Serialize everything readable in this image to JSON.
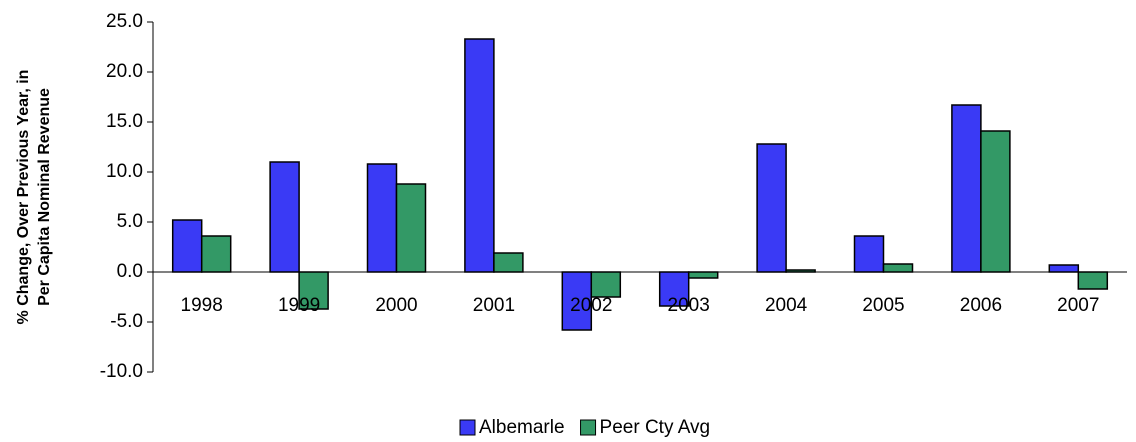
{
  "chart_data": {
    "type": "bar",
    "ylabel": [
      "% Change, Over Previous Year, in",
      "Per Capita Nominal Revenue"
    ],
    "categories": [
      "1998",
      "1999",
      "2000",
      "2001",
      "2002",
      "2003",
      "2004",
      "2005",
      "2006",
      "2007"
    ],
    "series": [
      {
        "name": "Albemarle",
        "color": "#3a3af5",
        "values": [
          5.2,
          11.0,
          10.8,
          23.3,
          -5.8,
          -3.4,
          12.8,
          3.6,
          16.7,
          0.7
        ]
      },
      {
        "name": "Peer Cty Avg",
        "color": "#339966",
        "values": [
          3.6,
          -3.7,
          8.8,
          1.9,
          -2.5,
          -0.6,
          0.2,
          0.8,
          14.1,
          -1.7
        ]
      }
    ],
    "ylim": [
      -10,
      25
    ],
    "yticks": [
      {
        "value": -10,
        "label": "-10.0"
      },
      {
        "value": -5,
        "label": "-5.0"
      },
      {
        "value": 0,
        "label": "0.0"
      },
      {
        "value": 5,
        "label": "5.0"
      },
      {
        "value": 10,
        "label": "10.0"
      },
      {
        "value": 15,
        "label": "15.0"
      },
      {
        "value": 20,
        "label": "20.0"
      },
      {
        "value": 25,
        "label": "25.0"
      }
    ],
    "grid": false
  }
}
